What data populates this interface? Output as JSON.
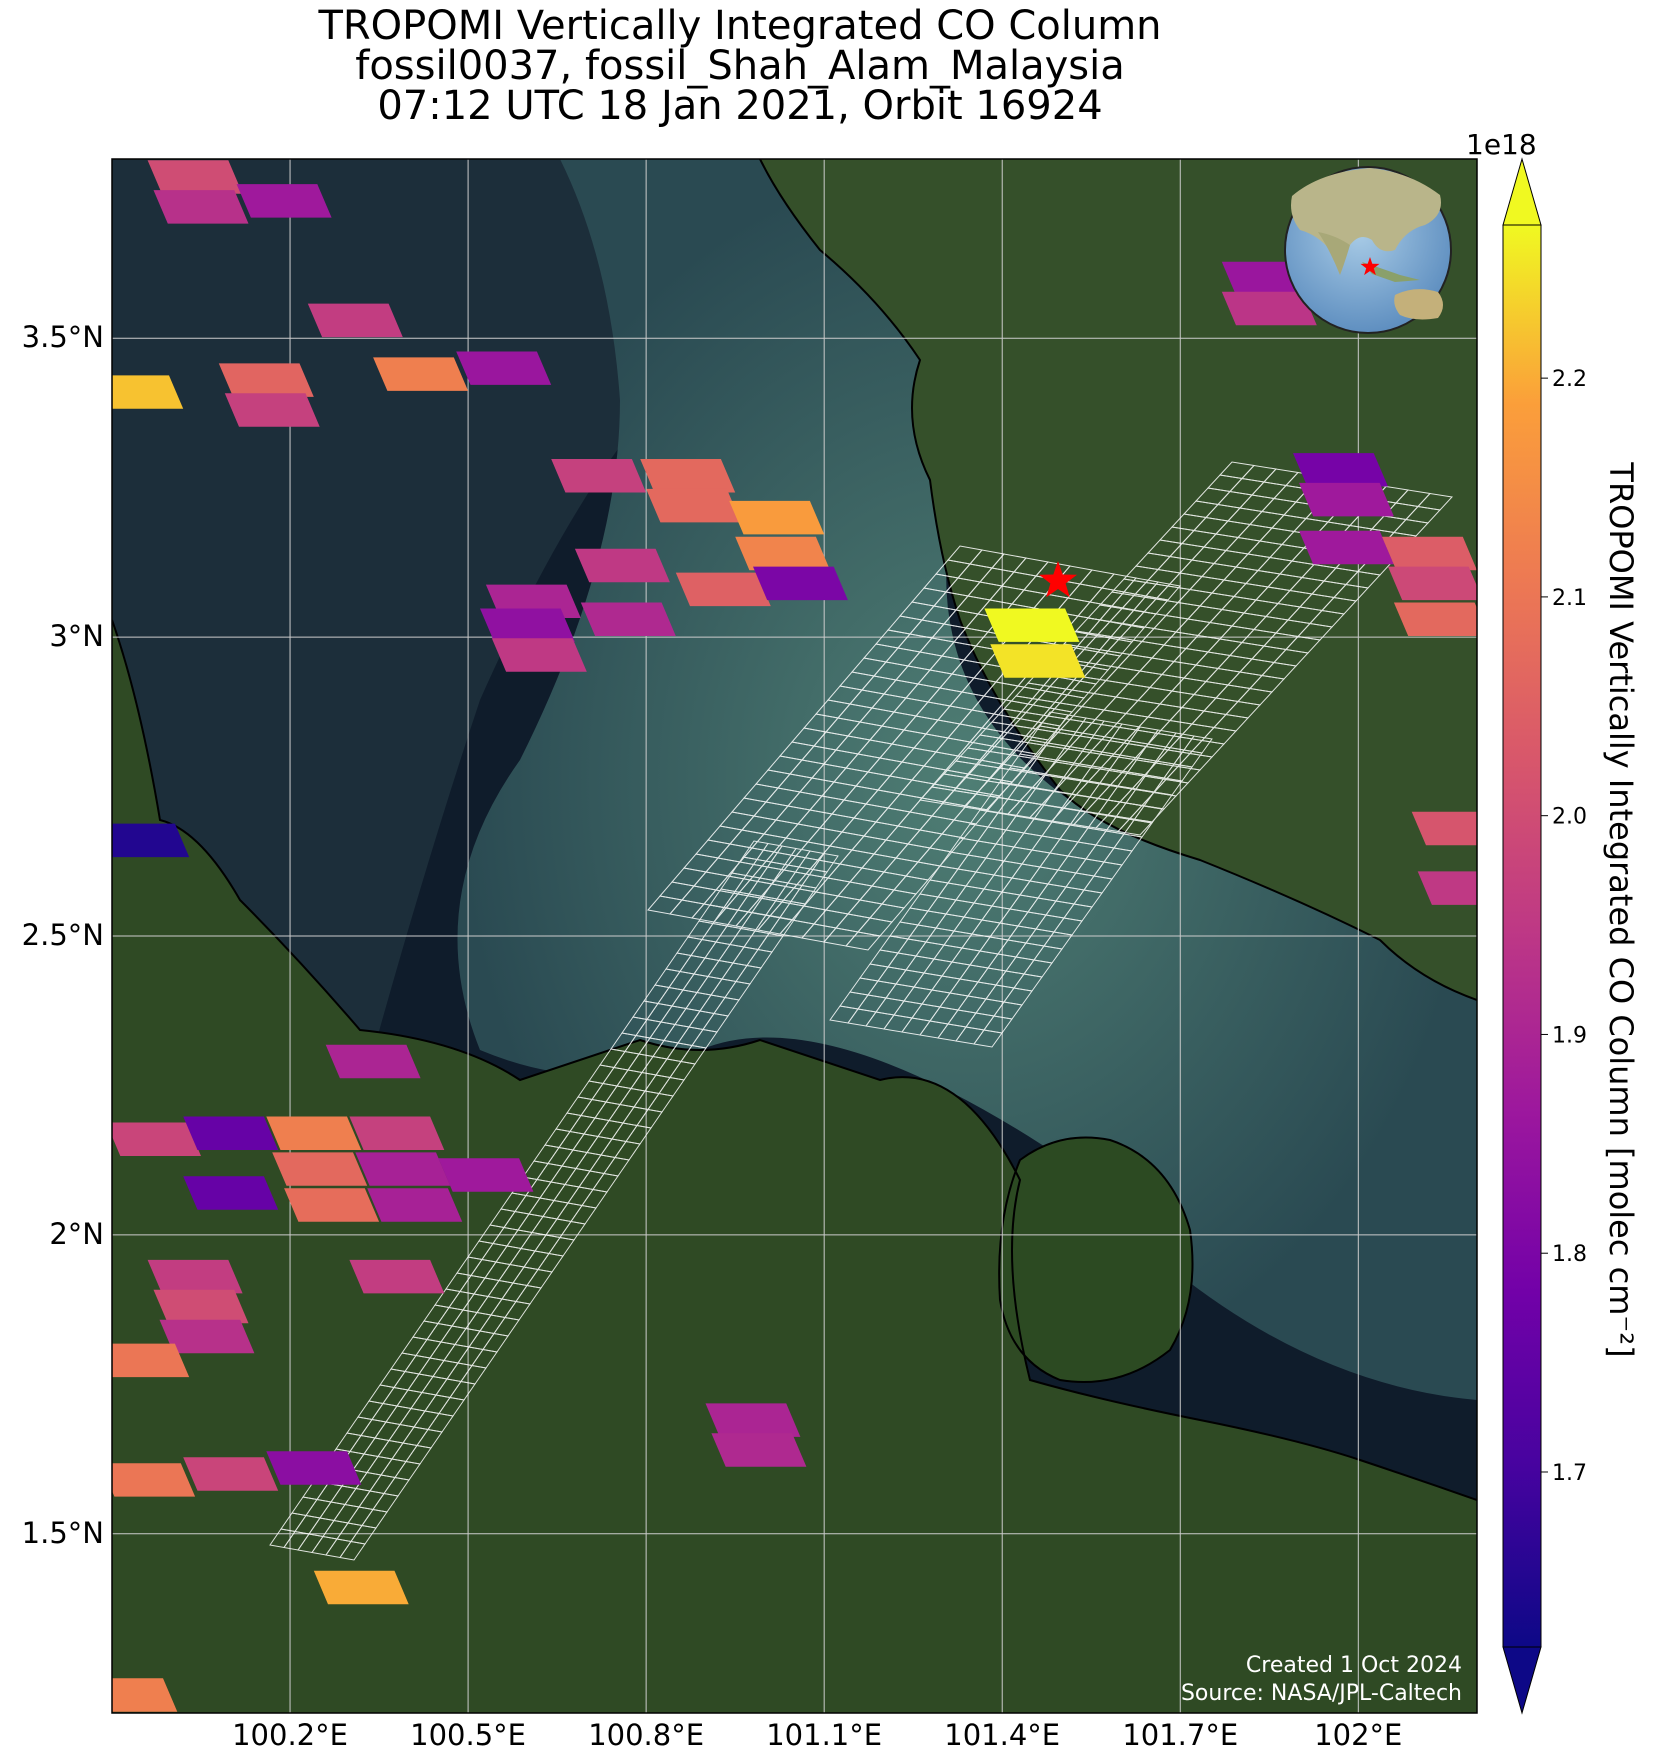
{
  "title": {
    "line1": "TROPOMI Vertically Integrated CO Column",
    "line2": "fossil0037, fossil_Shah_Alam_Malaysia",
    "line3": "07:12 UTC 18 Jan 2021, Orbit 16924"
  },
  "map": {
    "lon_range": [
      99.9,
      102.2
    ],
    "lat_range": [
      1.2,
      3.8
    ],
    "lon_ticks": [
      {
        "value": 100.2,
        "label": "100.2°E"
      },
      {
        "value": 100.5,
        "label": "100.5°E"
      },
      {
        "value": 100.8,
        "label": "100.8°E"
      },
      {
        "value": 101.1,
        "label": "101.1°E"
      },
      {
        "value": 101.4,
        "label": "101.4°E"
      },
      {
        "value": 101.7,
        "label": "101.7°E"
      },
      {
        "value": 102.0,
        "label": "102°E"
      }
    ],
    "lat_ticks": [
      {
        "value": 1.5,
        "label": "1.5°N"
      },
      {
        "value": 2.0,
        "label": "2°N"
      },
      {
        "value": 2.5,
        "label": "2.5°N"
      },
      {
        "value": 3.0,
        "label": "3°N"
      },
      {
        "value": 3.5,
        "label": "3.5°N"
      }
    ],
    "gridlines": true,
    "colors": {
      "sea": "#0f1c2b",
      "shallow_water": "#3d6a6a",
      "land": "#2f4a24",
      "coastline": "#000000",
      "gridline": "#cccccc",
      "target_marker": "#ff0000"
    },
    "target": {
      "name": "fossil_Shah_Alam_Malaysia",
      "lon": 101.49,
      "lat": 3.09,
      "marker": "red-star"
    }
  },
  "colorbar": {
    "label": "TROPOMI Vertically Integrated CO Column [molec cm⁻²]",
    "multiplier": "1e18",
    "range": [
      1.62,
      2.27
    ],
    "ticks": [
      "1.7",
      "1.8",
      "1.9",
      "2.0",
      "2.1",
      "2.2"
    ],
    "tick_values": [
      1.7,
      1.8,
      1.9,
      2.0,
      2.1,
      2.2
    ],
    "colormap": "plasma",
    "extend": "both"
  },
  "credit": {
    "line1": "Created 1 Oct 2024",
    "line2": "Source: NASA/JPL-Caltech"
  },
  "chart_data": {
    "type": "heatmap",
    "units": "1e18 molec cm-2",
    "pixels": [
      {
        "lon": 100.04,
        "lat": 3.77,
        "value": 2.0
      },
      {
        "lon": 100.05,
        "lat": 3.72,
        "value": 1.93
      },
      {
        "lon": 100.19,
        "lat": 3.73,
        "value": 1.87
      },
      {
        "lon": 100.31,
        "lat": 3.53,
        "value": 1.96
      },
      {
        "lon": 99.94,
        "lat": 3.41,
        "value": 2.22
      },
      {
        "lon": 100.16,
        "lat": 3.43,
        "value": 2.06
      },
      {
        "lon": 100.17,
        "lat": 3.38,
        "value": 1.97
      },
      {
        "lon": 100.42,
        "lat": 3.44,
        "value": 2.12
      },
      {
        "lon": 100.56,
        "lat": 3.45,
        "value": 1.86
      },
      {
        "lon": 100.72,
        "lat": 3.27,
        "value": 1.97
      },
      {
        "lon": 100.87,
        "lat": 3.27,
        "value": 2.07
      },
      {
        "lon": 100.88,
        "lat": 3.22,
        "value": 2.07
      },
      {
        "lon": 101.02,
        "lat": 3.2,
        "value": 2.18
      },
      {
        "lon": 101.03,
        "lat": 3.14,
        "value": 2.13
      },
      {
        "lon": 100.76,
        "lat": 3.12,
        "value": 1.95
      },
      {
        "lon": 100.61,
        "lat": 3.06,
        "value": 1.9
      },
      {
        "lon": 100.6,
        "lat": 3.02,
        "value": 1.84
      },
      {
        "lon": 100.62,
        "lat": 2.97,
        "value": 1.95
      },
      {
        "lon": 100.77,
        "lat": 3.03,
        "value": 1.91
      },
      {
        "lon": 100.93,
        "lat": 3.08,
        "value": 2.05
      },
      {
        "lon": 101.06,
        "lat": 3.09,
        "value": 1.8
      },
      {
        "lon": 101.45,
        "lat": 3.02,
        "value": 2.27
      },
      {
        "lon": 101.46,
        "lat": 2.96,
        "value": 2.25
      },
      {
        "lon": 101.85,
        "lat": 3.6,
        "value": 1.86
      },
      {
        "lon": 101.85,
        "lat": 3.55,
        "value": 1.94
      },
      {
        "lon": 101.97,
        "lat": 3.28,
        "value": 1.79
      },
      {
        "lon": 101.98,
        "lat": 3.23,
        "value": 1.87
      },
      {
        "lon": 101.98,
        "lat": 3.15,
        "value": 1.87
      },
      {
        "lon": 102.12,
        "lat": 3.14,
        "value": 2.04
      },
      {
        "lon": 102.13,
        "lat": 3.09,
        "value": 1.99
      },
      {
        "lon": 102.14,
        "lat": 3.03,
        "value": 2.07
      },
      {
        "lon": 102.17,
        "lat": 2.68,
        "value": 2.02
      },
      {
        "lon": 102.18,
        "lat": 2.58,
        "value": 1.95
      },
      {
        "lon": 99.95,
        "lat": 2.66,
        "value": 1.65
      },
      {
        "lon": 100.34,
        "lat": 2.29,
        "value": 1.9
      },
      {
        "lon": 99.97,
        "lat": 2.16,
        "value": 1.98
      },
      {
        "lon": 100.1,
        "lat": 2.17,
        "value": 1.76
      },
      {
        "lon": 100.24,
        "lat": 2.17,
        "value": 2.12
      },
      {
        "lon": 100.25,
        "lat": 2.11,
        "value": 2.07
      },
      {
        "lon": 100.38,
        "lat": 2.17,
        "value": 1.97
      },
      {
        "lon": 100.39,
        "lat": 2.11,
        "value": 1.89
      },
      {
        "lon": 100.1,
        "lat": 2.07,
        "value": 1.76
      },
      {
        "lon": 100.27,
        "lat": 2.05,
        "value": 2.08
      },
      {
        "lon": 100.41,
        "lat": 2.05,
        "value": 1.89
      },
      {
        "lon": 100.53,
        "lat": 2.1,
        "value": 1.87
      },
      {
        "lon": 100.04,
        "lat": 1.93,
        "value": 1.96
      },
      {
        "lon": 100.05,
        "lat": 1.88,
        "value": 2.0
      },
      {
        "lon": 100.06,
        "lat": 1.83,
        "value": 1.93
      },
      {
        "lon": 99.95,
        "lat": 1.79,
        "value": 2.1
      },
      {
        "lon": 100.38,
        "lat": 1.93,
        "value": 1.96
      },
      {
        "lon": 100.98,
        "lat": 1.69,
        "value": 1.9
      },
      {
        "lon": 100.99,
        "lat": 1.64,
        "value": 1.91
      },
      {
        "lon": 99.96,
        "lat": 1.59,
        "value": 2.1
      },
      {
        "lon": 100.1,
        "lat": 1.6,
        "value": 1.98
      },
      {
        "lon": 100.24,
        "lat": 1.61,
        "value": 1.83
      },
      {
        "lon": 100.32,
        "lat": 1.41,
        "value": 2.2
      },
      {
        "lon": 99.93,
        "lat": 1.23,
        "value": 2.12
      }
    ]
  }
}
